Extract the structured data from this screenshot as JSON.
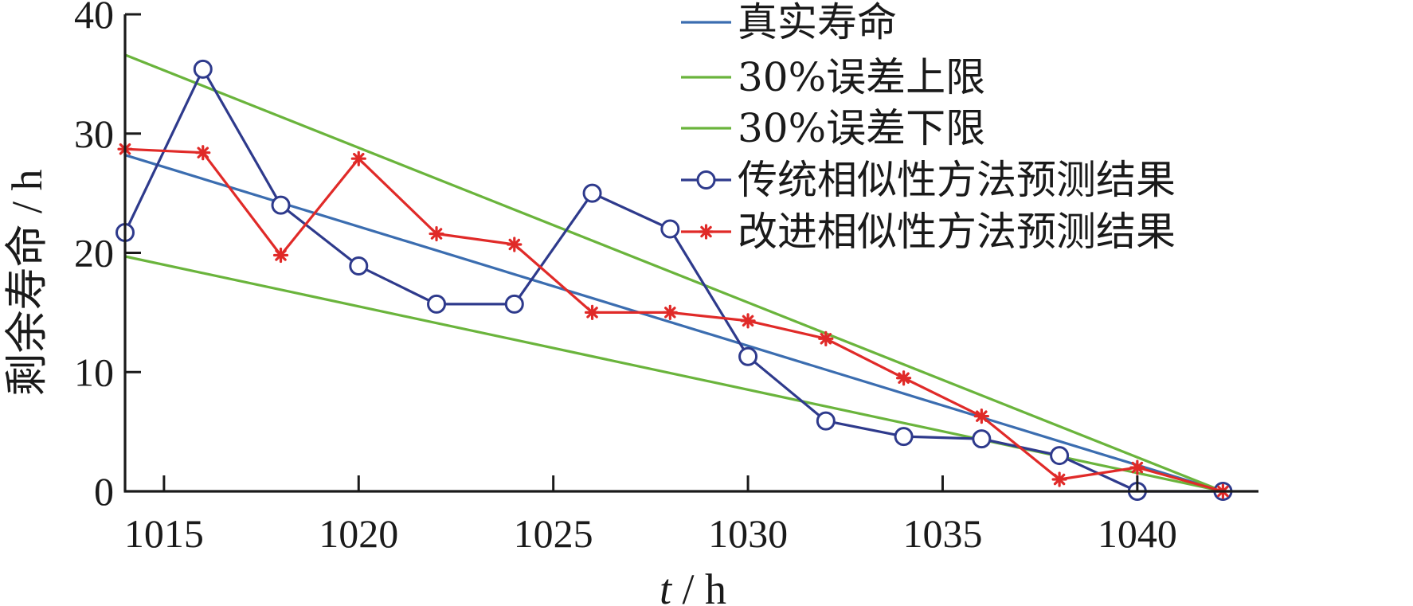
{
  "chart_data": {
    "type": "line",
    "title": "",
    "xlabel_var": "t",
    "xlabel_unit": " / h",
    "ylabel": "剩余寿命 / h",
    "xlim": [
      1014,
      1043
    ],
    "ylim": [
      0,
      40
    ],
    "xticks": [
      1015,
      1020,
      1025,
      1030,
      1035,
      1040
    ],
    "yticks": [
      0,
      10,
      20,
      30,
      40
    ],
    "grid": false,
    "legend_position": "top-right",
    "colors": {
      "true_life": "#3b6db0",
      "error_bound": "#6ab43c",
      "traditional": "#2e3a8c",
      "improved": "#e02a28"
    },
    "series": [
      {
        "name": "真实寿命",
        "style": "line",
        "color": "#3b6db0",
        "x": [
          1014,
          1042.2
        ],
        "y": [
          28.2,
          0
        ]
      },
      {
        "name": "30%误差上限",
        "style": "line",
        "color": "#6ab43c",
        "x": [
          1014,
          1042.2
        ],
        "y": [
          36.6,
          0
        ]
      },
      {
        "name": "30%误差下限",
        "style": "line",
        "color": "#6ab43c",
        "x": [
          1014,
          1042.2
        ],
        "y": [
          19.7,
          0
        ]
      },
      {
        "name": "传统相似性方法预测结果",
        "style": "line-circle",
        "color": "#2e3a8c",
        "x": [
          1014,
          1016,
          1018,
          1020,
          1022,
          1024,
          1026,
          1028,
          1030,
          1032,
          1034,
          1036,
          1038,
          1040,
          1042.2
        ],
        "y": [
          21.7,
          35.4,
          24.0,
          18.9,
          15.7,
          15.7,
          25.0,
          22.0,
          11.3,
          5.9,
          4.6,
          4.4,
          3.0,
          0.0,
          0.0
        ]
      },
      {
        "name": "改进相似性方法预测结果",
        "style": "line-star",
        "color": "#e02a28",
        "x": [
          1014,
          1016,
          1018,
          1020,
          1022,
          1024,
          1026,
          1028,
          1030,
          1032,
          1034,
          1036,
          1038,
          1040,
          1042.2
        ],
        "y": [
          28.7,
          28.4,
          19.8,
          27.9,
          21.6,
          20.7,
          15.0,
          15.0,
          14.3,
          12.8,
          9.5,
          6.3,
          1.0,
          2.0,
          0.0
        ]
      }
    ]
  }
}
